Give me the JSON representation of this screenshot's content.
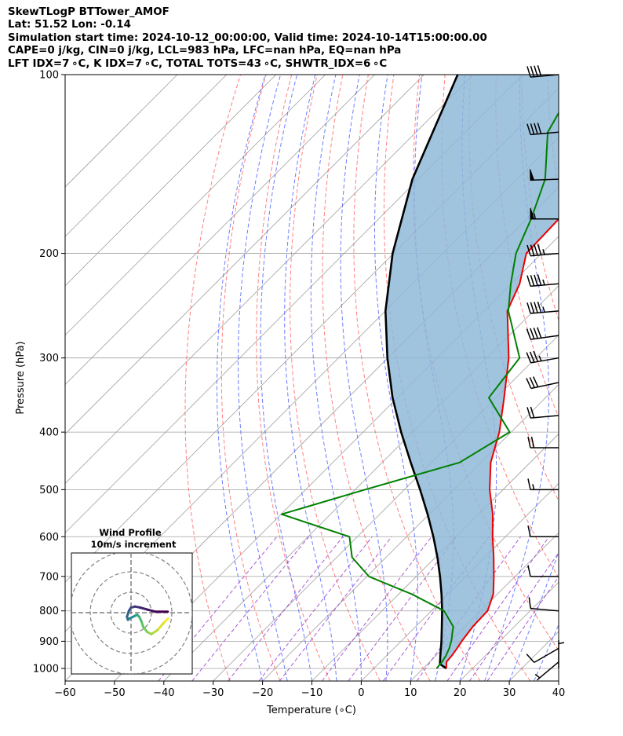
{
  "header": {
    "line1": "SkewTLogP BTTower_AMOF",
    "line2": "Lat: 51.52   Lon: -0.14",
    "line3": "Simulation start time: 2024-10-12_00:00:00, Valid time: 2024-10-14T15:00:00.00",
    "line4": "CAPE=0 j/kg, CIN=0 j/kg, LCL=983 hPa, LFC=nan hPa, EQ=nan hPa",
    "line5": "LFT IDX=7 ∘C, K IDX=7 ∘C, TOTAL TOTS=43 ∘C, SHWTR_IDX=6 ∘C"
  },
  "chart_data": {
    "type": "skewt-logp",
    "xlabel": "Temperature (∘C)",
    "ylabel": "Pressure (hPa)",
    "xlim": [
      -60,
      40
    ],
    "ylim": [
      1050,
      100
    ],
    "xticks": [
      "−60",
      "−50",
      "−40",
      "−30",
      "−20",
      "−10",
      "0",
      "10",
      "20",
      "30",
      "40"
    ],
    "yticks": [
      "100",
      "200",
      "300",
      "400",
      "500",
      "600",
      "700",
      "800",
      "900",
      "1000"
    ],
    "grid": true,
    "colors": {
      "temperature": "#ee0000",
      "dewpoint": "#008000",
      "parcel": "#000000",
      "shade": "#8fb8d8",
      "dry_adiabats": "#ff6060",
      "moist_adiabats": "#4a5cff",
      "mixing_ratio": "#9932cc",
      "isotherms": "#a0a0a0"
    },
    "temperature": {
      "p": [
        1000,
        975,
        950,
        925,
        900,
        850,
        800,
        750,
        700,
        650,
        600,
        550,
        500,
        450,
        400,
        350,
        300,
        250,
        225,
        200,
        175,
        150,
        125,
        100
      ],
      "t": [
        14.7,
        13.4,
        13.2,
        12.8,
        12.3,
        11.6,
        11.4,
        9.2,
        5.7,
        1.8,
        -2.6,
        -7.1,
        -12.7,
        -18.0,
        -22.4,
        -28.4,
        -35.5,
        -45.3,
        -48.3,
        -53.1,
        -53.5,
        -56.2,
        -58.1,
        -61.5
      ]
    },
    "dewpoint": {
      "p": [
        1000,
        975,
        950,
        925,
        900,
        850,
        800,
        750,
        700,
        650,
        600,
        550,
        500,
        450,
        400,
        350,
        300,
        250,
        225,
        200,
        175,
        150,
        125,
        100
      ],
      "t": [
        12.7,
        12.5,
        12.0,
        11.2,
        10.2,
        7.6,
        2.6,
        -7.3,
        -19.6,
        -26.9,
        -31.6,
        -49.9,
        -38.0,
        -24.3,
        -20.3,
        -31.5,
        -33.3,
        -45.1,
        -50.1,
        -55.2,
        -59.1,
        -64.3,
        -73.3,
        -78.3
      ]
    },
    "parcel": {
      "p": [
        1000,
        983,
        950,
        900,
        850,
        800,
        750,
        700,
        650,
        600,
        550,
        500,
        450,
        400,
        350,
        300,
        250,
        200,
        150,
        100
      ],
      "t": [
        14.7,
        12.5,
        10.8,
        8.2,
        5.3,
        2.2,
        -1.3,
        -5.2,
        -9.6,
        -14.6,
        -20.3,
        -26.8,
        -34.2,
        -42.3,
        -51.0,
        -60.1,
        -70.0,
        -80.2,
        -91.2,
        -103.2
      ]
    },
    "wind_barbs": {
      "units": "knots",
      "p": [
        100,
        125,
        150,
        175,
        200,
        225,
        250,
        275,
        300,
        330,
        375,
        425,
        500,
        600,
        700,
        800,
        925,
        975,
        1000
      ],
      "speed": [
        40,
        40,
        50,
        55,
        45,
        45,
        45,
        40,
        35,
        30,
        20,
        20,
        15,
        10,
        10,
        10,
        10,
        5,
        5
      ],
      "dir": [
        265,
        265,
        268,
        270,
        265,
        265,
        265,
        262,
        260,
        258,
        265,
        270,
        270,
        270,
        270,
        275,
        240,
        230,
        0
      ]
    },
    "inset": {
      "title": "Wind Profile",
      "subtitle": "10m/s increment",
      "ring_increment_ms": 10,
      "colormap": [
        "#440154",
        "#3b528b",
        "#21918c",
        "#5ec962",
        "#fde725"
      ],
      "u": [
        18.0,
        16.0,
        13.0,
        10.0,
        8.0,
        6.0,
        5.0,
        4.0,
        3.0,
        2.0,
        1.0,
        -1.0,
        -1.5,
        -2.0,
        -1.0,
        0.0,
        2.0,
        4.5,
        8.0,
        12.0,
        18.0
      ],
      "v": [
        -3.0,
        -5.0,
        -8.5,
        -10.5,
        -9.5,
        -7.0,
        -4.0,
        -2.0,
        -1.0,
        -1.5,
        -2.0,
        -3.0,
        -3.5,
        -2.0,
        1.0,
        2.5,
        3.0,
        2.5,
        1.5,
        0.5,
        0.5
      ]
    }
  }
}
